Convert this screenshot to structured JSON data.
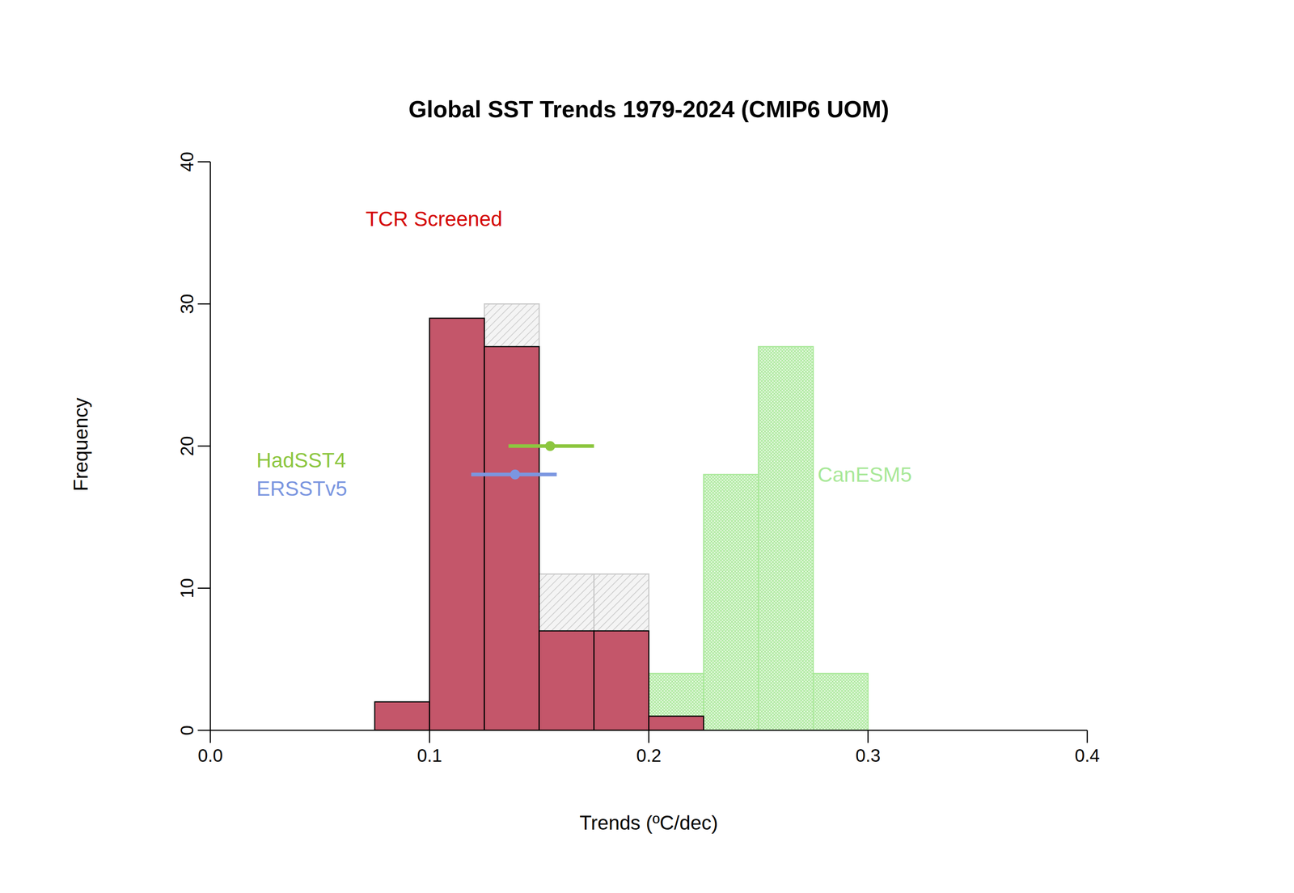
{
  "chart_data": {
    "type": "histogram",
    "title": "Global SST Trends 1979-2024 (CMIP6 UOM)",
    "x_label": "Trends (ºC/dec)",
    "y_label": "Frequency",
    "bins": [
      0.075,
      0.1,
      0.125,
      0.15,
      0.175,
      0.2,
      0.225,
      0.25,
      0.275,
      0.3
    ],
    "series": [
      {
        "color": "#c8c8c8",
        "values": [
          2,
          29,
          30,
          11,
          11,
          1,
          0,
          0,
          0
        ]
      },
      {
        "name": "CanESM5",
        "color": "#a8e898",
        "values": [
          0,
          0,
          0,
          0,
          0,
          4,
          18,
          27,
          4
        ]
      },
      {
        "name": "TCR Screened",
        "color": "#c4566a",
        "values": [
          2,
          29,
          27,
          7,
          7,
          1,
          0,
          0,
          0
        ]
      }
    ],
    "observations": [
      {
        "name": "HadSST4",
        "color": "#8cc63f",
        "x": 0.155,
        "y": 20,
        "xmin": 0.136,
        "xmax": 0.175
      },
      {
        "name": "ERSSTv5",
        "color": "#7b96e0",
        "x": 0.139,
        "y": 18,
        "xmin": 0.119,
        "xmax": 0.158
      }
    ],
    "xlim": [
      0,
      0.4
    ],
    "xticks": [
      {
        "value": 0,
        "label": "0.0"
      },
      0.1,
      0.2,
      0.3,
      0.4
    ],
    "ylim": [
      0,
      40
    ],
    "yticks": [
      0,
      10,
      20,
      30,
      40
    ],
    "grid": false
  }
}
